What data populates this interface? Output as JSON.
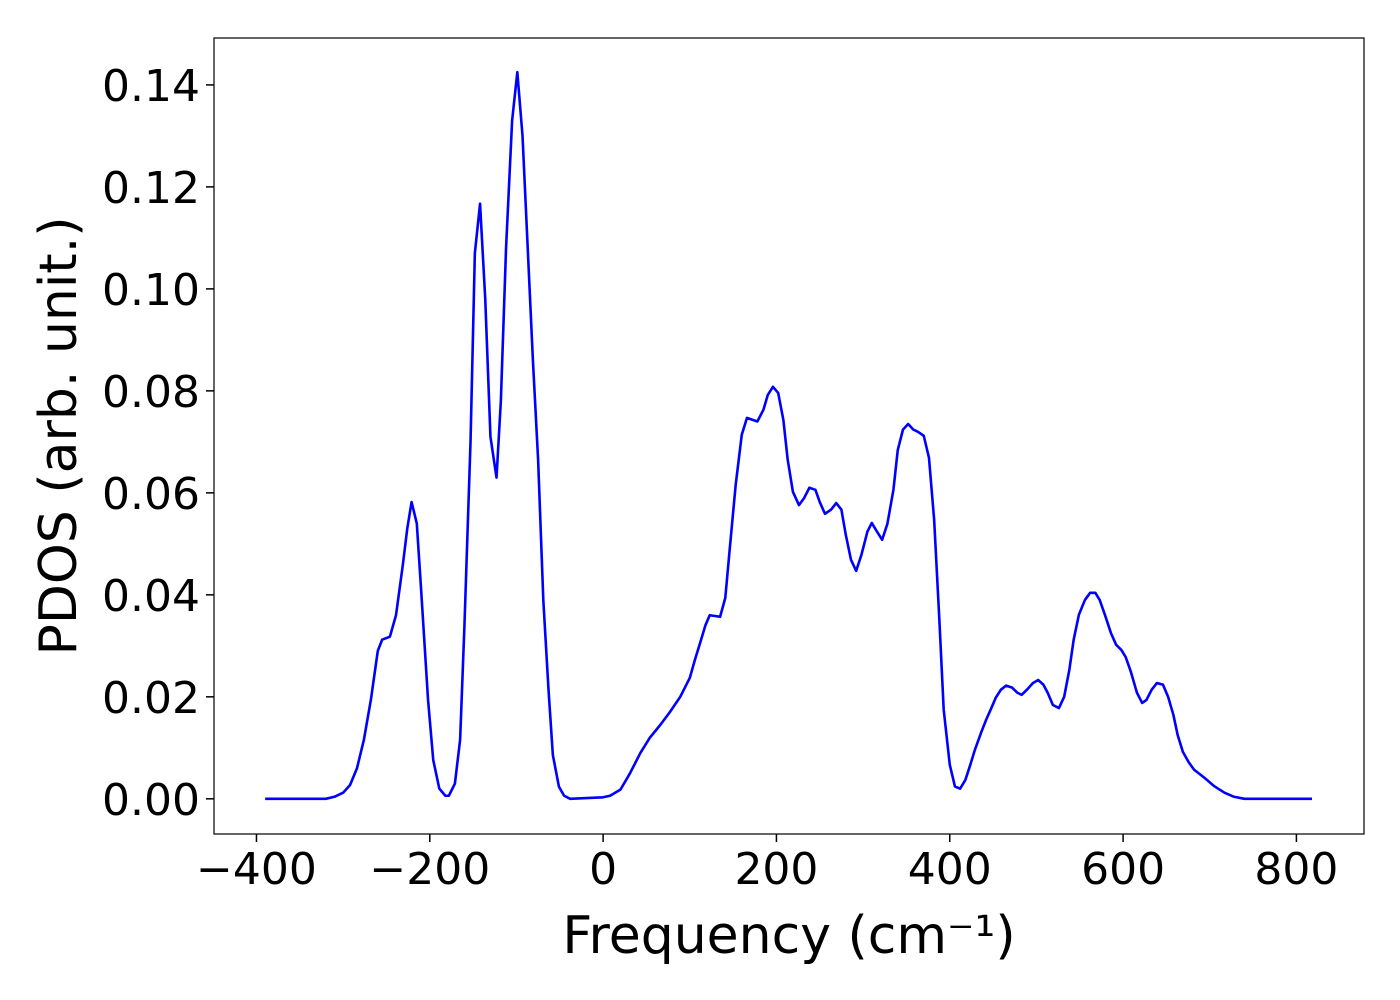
{
  "chart_data": {
    "type": "line",
    "xlabel": "Frequency (cm⁻¹)",
    "ylabel": "PDOS (arb. unit.)",
    "color": "#0000ff",
    "xlim": [
      -449,
      878
    ],
    "ylim": [
      -0.0069,
      0.1492
    ],
    "xticks": [
      {
        "value": -400,
        "label": "−400"
      },
      {
        "value": -200,
        "label": "−200"
      },
      0,
      200,
      400,
      600,
      800
    ],
    "yticks": [
      {
        "value": 0,
        "label": "0.00"
      },
      {
        "value": 0.02,
        "label": "0.02"
      },
      {
        "value": 0.04,
        "label": "0.04"
      },
      {
        "value": 0.06,
        "label": "0.06"
      },
      {
        "value": 0.08,
        "label": "0.08"
      },
      {
        "value": 0.1,
        "label": "0.10"
      },
      {
        "value": 0.12,
        "label": "0.12"
      },
      {
        "value": 0.14,
        "label": "0.14"
      }
    ],
    "x": [
      -390,
      -320,
      -310,
      -300,
      -292,
      -284,
      -276,
      -268,
      -260,
      -255,
      -246,
      -239,
      -231,
      -226,
      -221,
      -215,
      -210,
      -202,
      -196,
      -189,
      -182,
      -178,
      -171,
      -165,
      -160,
      -153,
      -148,
      -142,
      -136,
      -130,
      -123,
      -118,
      -112,
      -105,
      -99,
      -93,
      -87,
      -81,
      -75,
      -69,
      -63,
      -58,
      -51,
      -45,
      -38,
      0,
      8,
      20,
      31,
      43,
      54,
      66,
      77,
      89,
      100,
      106,
      112,
      118,
      123,
      135,
      141,
      146,
      153,
      160,
      166,
      178,
      185,
      190,
      196,
      202,
      208,
      213,
      219,
      226,
      232,
      238,
      245,
      250,
      256,
      263,
      269,
      275,
      280,
      286,
      292,
      298,
      305,
      310,
      316,
      322,
      328,
      335,
      340,
      346,
      352,
      358,
      363,
      370,
      376,
      382,
      388,
      393,
      400,
      406,
      412,
      418,
      423,
      429,
      436,
      442,
      448,
      453,
      459,
      465,
      472,
      478,
      483,
      489,
      496,
      502,
      508,
      513,
      519,
      526,
      532,
      538,
      543,
      549,
      556,
      562,
      568,
      573,
      579,
      586,
      592,
      598,
      603,
      609,
      616,
      622,
      627,
      633,
      639,
      646,
      652,
      658,
      663,
      669,
      676,
      682,
      694,
      705,
      717,
      728,
      740,
      818
    ],
    "values": [
      0,
      0,
      0.0004,
      0.0012,
      0.0027,
      0.006,
      0.0116,
      0.0194,
      0.029,
      0.0312,
      0.0318,
      0.036,
      0.046,
      0.053,
      0.0582,
      0.054,
      0.041,
      0.0194,
      0.0076,
      0.002,
      0.0006,
      0.0006,
      0.003,
      0.0116,
      0.034,
      0.07,
      0.107,
      0.1167,
      0.098,
      0.071,
      0.063,
      0.078,
      0.108,
      0.133,
      0.1425,
      0.13,
      0.108,
      0.086,
      0.0665,
      0.039,
      0.0214,
      0.0086,
      0.0024,
      0.0006,
      0,
      0.0003,
      0.0006,
      0.0018,
      0.005,
      0.009,
      0.012,
      0.0145,
      0.017,
      0.02,
      0.0237,
      0.0273,
      0.0306,
      0.034,
      0.036,
      0.0357,
      0.0394,
      0.0488,
      0.0616,
      0.0714,
      0.0747,
      0.074,
      0.0763,
      0.0792,
      0.0808,
      0.0796,
      0.0743,
      0.0665,
      0.0602,
      0.0576,
      0.059,
      0.061,
      0.0606,
      0.0582,
      0.0559,
      0.0567,
      0.058,
      0.0567,
      0.0518,
      0.0469,
      0.0447,
      0.0478,
      0.0524,
      0.0541,
      0.0524,
      0.0508,
      0.0539,
      0.0606,
      0.0684,
      0.0724,
      0.0735,
      0.0724,
      0.072,
      0.0712,
      0.0669,
      0.0547,
      0.0351,
      0.0175,
      0.0067,
      0.0024,
      0.002,
      0.0037,
      0.0063,
      0.0096,
      0.0129,
      0.0155,
      0.0178,
      0.0198,
      0.0214,
      0.0222,
      0.0218,
      0.0208,
      0.0204,
      0.0214,
      0.0227,
      0.0233,
      0.0224,
      0.0208,
      0.0184,
      0.0178,
      0.02,
      0.0253,
      0.0312,
      0.0361,
      0.039,
      0.0404,
      0.0404,
      0.039,
      0.0361,
      0.0325,
      0.0302,
      0.0292,
      0.0278,
      0.0249,
      0.0208,
      0.0188,
      0.0194,
      0.0214,
      0.0227,
      0.0224,
      0.02,
      0.0165,
      0.0125,
      0.0092,
      0.0071,
      0.0057,
      0.0041,
      0.0025,
      0.0012,
      0.0004,
      0,
      0
    ]
  }
}
